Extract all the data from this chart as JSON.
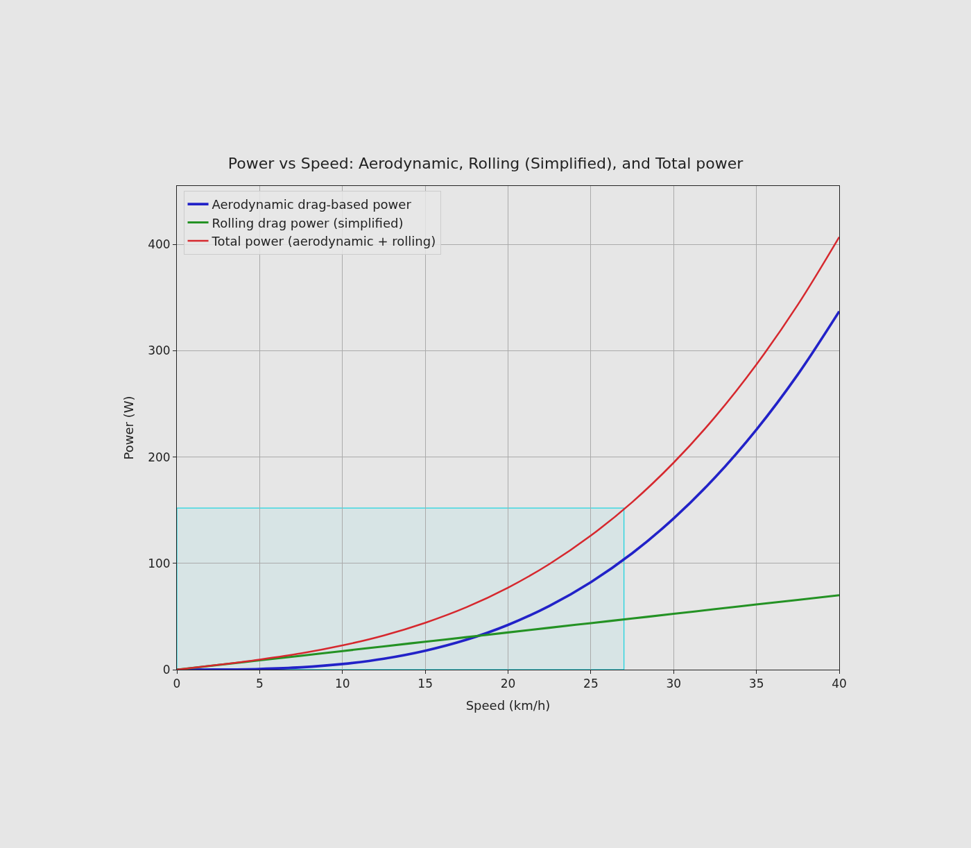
{
  "chart_data": {
    "type": "line",
    "title": "Power vs Speed: Aerodynamic, Rolling (Simplified), and Total power",
    "xlabel": "Speed (km/h)",
    "ylabel": "Power (W)",
    "x": [
      0,
      2.5,
      5,
      7.5,
      10,
      12.5,
      15,
      17.5,
      20,
      22.5,
      25,
      27.5,
      30,
      32.5,
      35,
      37.5,
      40
    ],
    "series": [
      {
        "name": "Aerodynamic drag-based power",
        "color": "#2222c8",
        "values": [
          0,
          0.1,
          0.7,
          2.2,
          5.3,
          10.3,
          17.8,
          28.2,
          42.1,
          60,
          82.3,
          109.5,
          142.2,
          180.8,
          225.8,
          277.7,
          337
        ]
      },
      {
        "name": "Rolling drag power (simplified)",
        "color": "#249224",
        "values": [
          0,
          4.4,
          8.8,
          13.1,
          17.5,
          21.9,
          26.3,
          30.6,
          35,
          39.4,
          43.8,
          48.1,
          52.5,
          56.9,
          61.3,
          65.6,
          70
        ]
      },
      {
        "name": "Total power (aerodynamic + rolling)",
        "color": "#d6282e",
        "values": [
          0,
          4.5,
          9.5,
          15.3,
          22.8,
          32.2,
          44.1,
          58.8,
          77.1,
          99.4,
          126.1,
          157.6,
          194.7,
          237.7,
          287.1,
          343.3,
          407
        ]
      },
      {
        "type": "area",
        "color": "#22d3de",
        "x": [
          0,
          27
        ],
        "values": [
          152,
          152
        ]
      }
    ],
    "xlim": [
      0,
      40
    ],
    "ylim": [
      0,
      455
    ],
    "xticks": [
      0,
      5,
      10,
      15,
      20,
      25,
      30,
      35,
      40
    ],
    "yticks": [
      0,
      100,
      200,
      300,
      400
    ],
    "grid": true,
    "legend": "top left",
    "marker": "none",
    "line_style": "solid"
  }
}
